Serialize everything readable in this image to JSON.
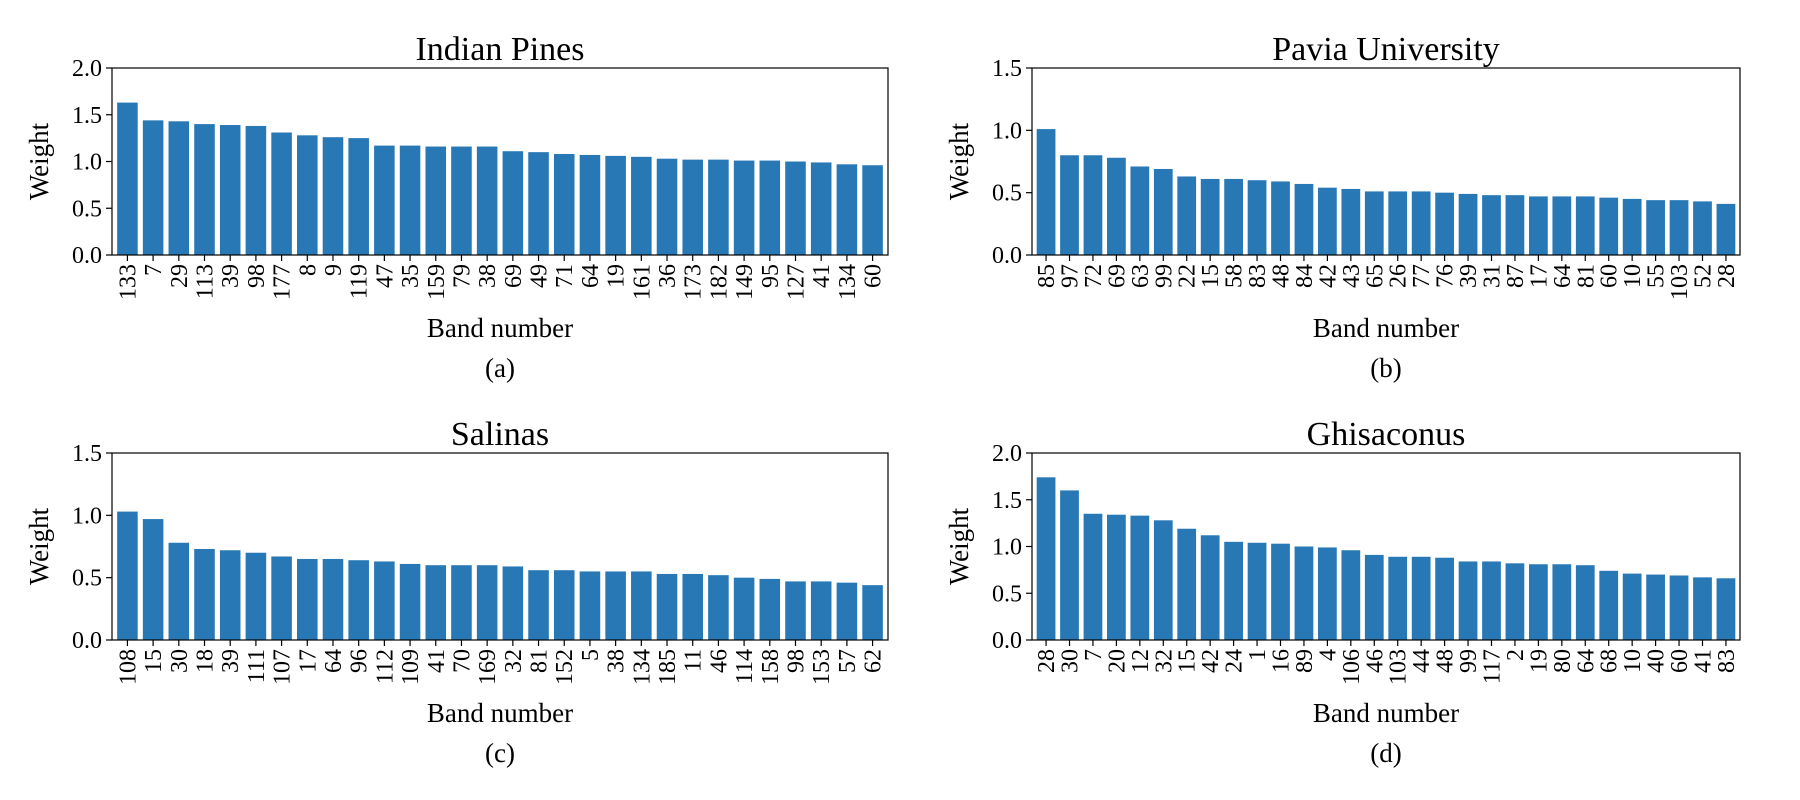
{
  "colors": {
    "bar": "#2878b5",
    "axis": "#000000",
    "background": "#ffffff"
  },
  "chart_data": [
    {
      "type": "bar",
      "title": "Indian Pines",
      "caption": "(a)",
      "xlabel": "Band number",
      "ylabel": "Weight",
      "ylim": [
        0,
        2.0
      ],
      "yticks": [
        "0.0",
        "0.5",
        "1.0",
        "1.5",
        "2.0"
      ],
      "grid": false,
      "categories": [
        "133",
        "7",
        "29",
        "113",
        "39",
        "98",
        "177",
        "8",
        "9",
        "119",
        "47",
        "35",
        "159",
        "79",
        "38",
        "69",
        "49",
        "71",
        "64",
        "19",
        "161",
        "36",
        "173",
        "182",
        "149",
        "95",
        "127",
        "41",
        "134",
        "60"
      ],
      "values": [
        1.63,
        1.44,
        1.43,
        1.4,
        1.39,
        1.38,
        1.31,
        1.28,
        1.26,
        1.25,
        1.17,
        1.17,
        1.16,
        1.16,
        1.16,
        1.11,
        1.1,
        1.08,
        1.07,
        1.06,
        1.05,
        1.03,
        1.02,
        1.02,
        1.01,
        1.01,
        1.0,
        0.99,
        0.97,
        0.96
      ]
    },
    {
      "type": "bar",
      "title": "Pavia University",
      "caption": "(b)",
      "xlabel": "Band number",
      "ylabel": "Weight",
      "ylim": [
        0,
        1.5
      ],
      "yticks": [
        "0.0",
        "0.5",
        "1.0",
        "1.5"
      ],
      "grid": false,
      "categories": [
        "85",
        "97",
        "72",
        "69",
        "63",
        "99",
        "22",
        "15",
        "58",
        "83",
        "48",
        "84",
        "42",
        "43",
        "65",
        "26",
        "77",
        "76",
        "39",
        "31",
        "87",
        "17",
        "64",
        "81",
        "60",
        "10",
        "55",
        "103",
        "52",
        "28"
      ],
      "values": [
        1.01,
        0.8,
        0.8,
        0.78,
        0.71,
        0.69,
        0.63,
        0.61,
        0.61,
        0.6,
        0.59,
        0.57,
        0.54,
        0.53,
        0.51,
        0.51,
        0.51,
        0.5,
        0.49,
        0.48,
        0.48,
        0.47,
        0.47,
        0.47,
        0.46,
        0.45,
        0.44,
        0.44,
        0.43,
        0.41
      ]
    },
    {
      "type": "bar",
      "title": "Salinas",
      "caption": "(c)",
      "xlabel": "Band number",
      "ylabel": "Weight",
      "ylim": [
        0,
        1.5
      ],
      "yticks": [
        "0.0",
        "0.5",
        "1.0",
        "1.5"
      ],
      "grid": false,
      "categories": [
        "108",
        "15",
        "30",
        "18",
        "39",
        "111",
        "107",
        "17",
        "64",
        "96",
        "112",
        "109",
        "41",
        "70",
        "169",
        "32",
        "81",
        "152",
        "5",
        "38",
        "134",
        "185",
        "11",
        "46",
        "114",
        "158",
        "98",
        "153",
        "57",
        "62"
      ],
      "values": [
        1.03,
        0.97,
        0.78,
        0.73,
        0.72,
        0.7,
        0.67,
        0.65,
        0.65,
        0.64,
        0.63,
        0.61,
        0.6,
        0.6,
        0.6,
        0.59,
        0.56,
        0.56,
        0.55,
        0.55,
        0.55,
        0.53,
        0.53,
        0.52,
        0.5,
        0.49,
        0.47,
        0.47,
        0.46,
        0.44
      ]
    },
    {
      "type": "bar",
      "title": "Ghisaconus",
      "caption": "(d)",
      "xlabel": "Band number",
      "ylabel": "Weight",
      "ylim": [
        0,
        2.0
      ],
      "yticks": [
        "0.0",
        "0.5",
        "1.0",
        "1.5",
        "2.0"
      ],
      "grid": false,
      "categories": [
        "28",
        "30",
        "7",
        "20",
        "12",
        "32",
        "15",
        "42",
        "24",
        "1",
        "16",
        "89",
        "4",
        "106",
        "46",
        "103",
        "44",
        "48",
        "99",
        "117",
        "2",
        "19",
        "80",
        "64",
        "68",
        "10",
        "40",
        "60",
        "41",
        "83"
      ],
      "values": [
        1.74,
        1.6,
        1.35,
        1.34,
        1.33,
        1.28,
        1.19,
        1.12,
        1.05,
        1.04,
        1.03,
        1.0,
        0.99,
        0.96,
        0.91,
        0.89,
        0.89,
        0.88,
        0.84,
        0.84,
        0.82,
        0.81,
        0.81,
        0.8,
        0.74,
        0.71,
        0.7,
        0.69,
        0.67,
        0.66
      ]
    }
  ]
}
